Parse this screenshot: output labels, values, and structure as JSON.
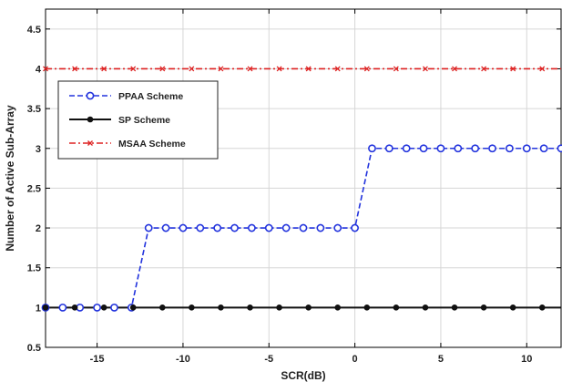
{
  "chart_data": {
    "type": "line",
    "title": "",
    "xlabel": "SCR(dB)",
    "ylabel": "Number of Active Sub-Array",
    "xlim": [
      -18,
      12
    ],
    "ylim": [
      0.5,
      4.75
    ],
    "xticks": [
      -15,
      -10,
      -5,
      0,
      5,
      10
    ],
    "yticks": [
      0.5,
      1,
      1.5,
      2,
      2.5,
      3,
      3.5,
      4,
      4.5
    ],
    "grid": true,
    "legend_position": "upper-left",
    "series": [
      {
        "name": "PPAA Scheme",
        "color": "#2233dd",
        "line_style": "dashed",
        "marker": "circle",
        "x": [
          -18,
          -17,
          -16,
          -15,
          -14,
          -13,
          -12,
          -11,
          -10,
          -9,
          -8,
          -7,
          -6,
          -5,
          -4,
          -3,
          -2,
          -1,
          0,
          1,
          2,
          3,
          4,
          5,
          6,
          7,
          8,
          9,
          10,
          11,
          12
        ],
        "y": [
          1,
          1,
          1,
          1,
          1,
          1,
          2,
          2,
          2,
          2,
          2,
          2,
          2,
          2,
          2,
          2,
          2,
          2,
          2,
          3,
          3,
          3,
          3,
          3,
          3,
          3,
          3,
          3,
          3,
          3,
          3
        ]
      },
      {
        "name": "SP Scheme",
        "color": "#111111",
        "line_style": "solid",
        "marker": "dot",
        "x": [
          -18,
          -16.3,
          -14.6,
          -12.9,
          -11.2,
          -9.5,
          -7.8,
          -6.1,
          -4.4,
          -2.7,
          -1,
          0.7,
          2.4,
          4.1,
          5.8,
          7.5,
          9.2,
          10.9
        ],
        "y": [
          1,
          1,
          1,
          1,
          1,
          1,
          1,
          1,
          1,
          1,
          1,
          1,
          1,
          1,
          1,
          1,
          1,
          1
        ]
      },
      {
        "name": "MSAA Scheme",
        "color": "#dd2222",
        "line_style": "dash-dot",
        "marker": "x",
        "x": [
          -18,
          -16.3,
          -14.6,
          -12.9,
          -11.2,
          -9.5,
          -7.8,
          -6.1,
          -4.4,
          -2.7,
          -1,
          0.7,
          2.4,
          4.1,
          5.8,
          7.5,
          9.2,
          10.9
        ],
        "y": [
          4,
          4,
          4,
          4,
          4,
          4,
          4,
          4,
          4,
          4,
          4,
          4,
          4,
          4,
          4,
          4,
          4,
          4
        ]
      }
    ]
  }
}
